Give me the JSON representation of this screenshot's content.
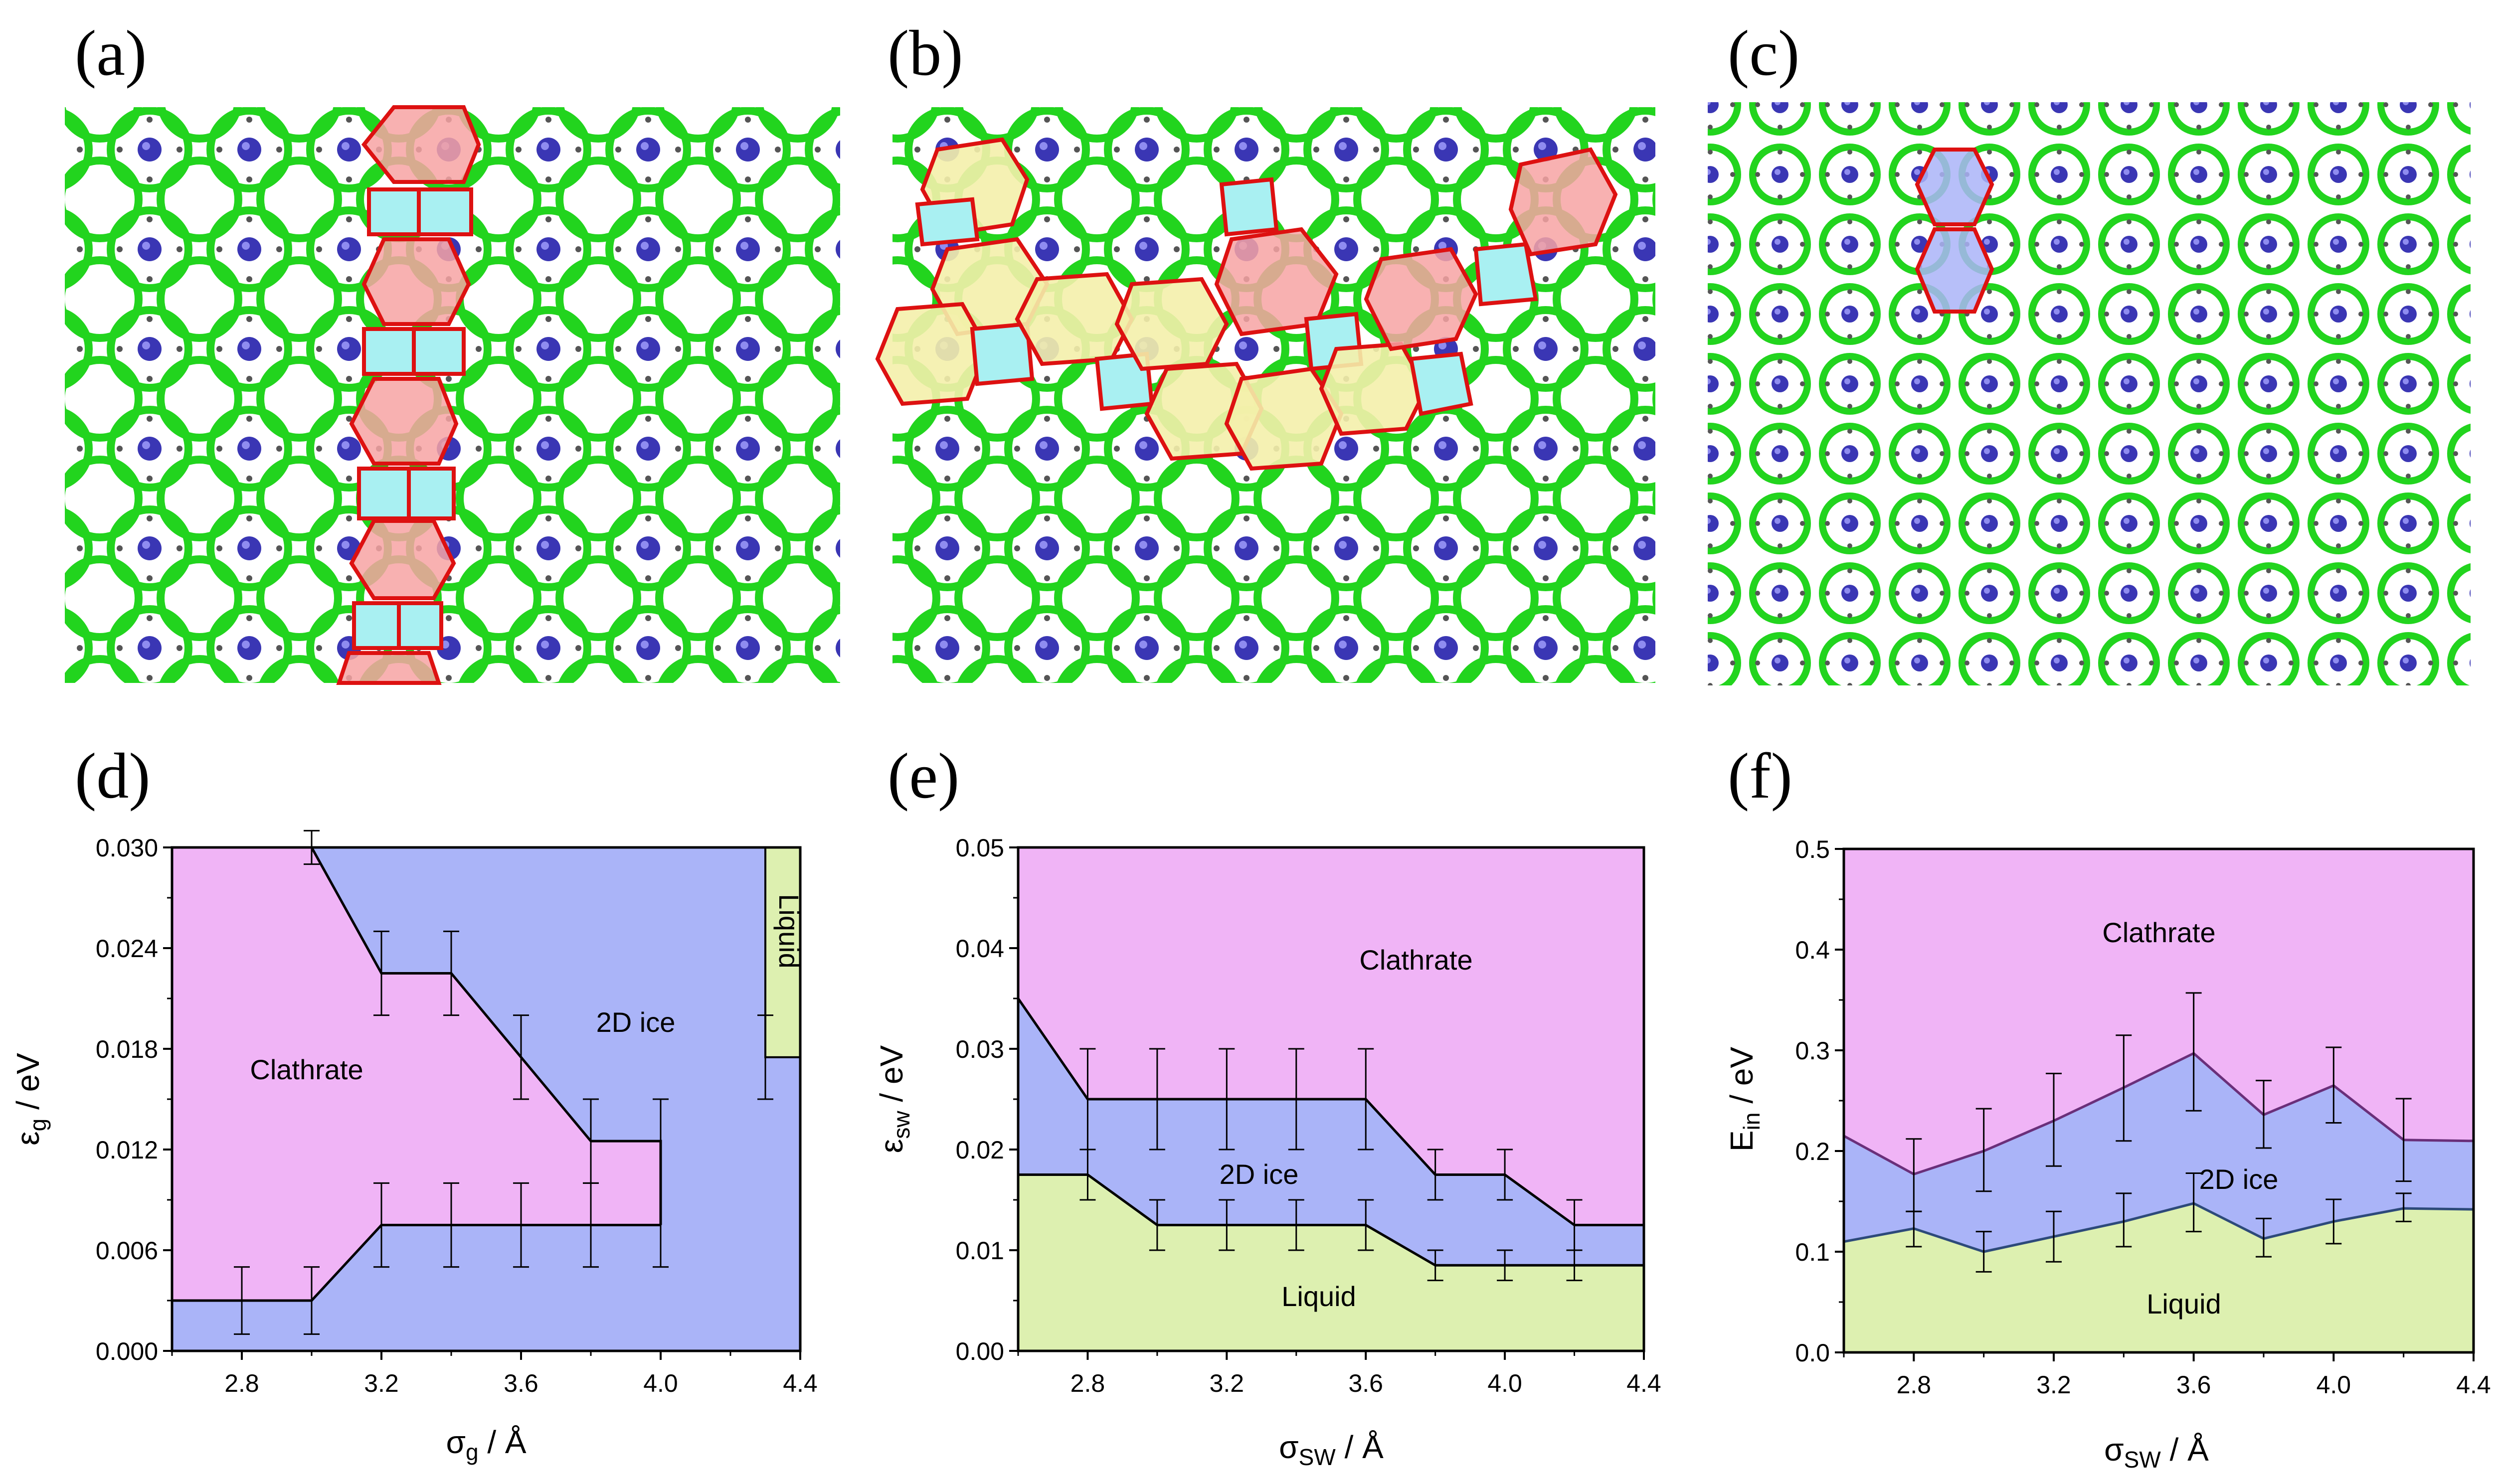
{
  "panel_labels": [
    "(a)",
    "(b)",
    "(c)",
    "(d)",
    "(e)",
    "(f)"
  ],
  "colors": {
    "clathrate": "#f0b4f6",
    "ice2d": "#aab4f8",
    "liquid": "#ddf0b0",
    "lattice_green": "#22d41e",
    "guest_blue": "#3a36b4",
    "cage_red": "#dd1111",
    "cage_red_fill": "#f7a3a3",
    "cage_cyan_fill": "#a9f0f2",
    "cage_yellow_fill": "#f4efab"
  },
  "images": [
    {
      "name": "structure-a-image",
      "description_icon": "clathrate-lattice-with-defect-column"
    },
    {
      "name": "structure-b-image",
      "description_icon": "clathrate-lattice-with-defect-band"
    },
    {
      "name": "structure-c-image",
      "description_icon": "2d-ice-lattice"
    }
  ],
  "chart_data": [
    {
      "panel": "(d)",
      "type": "area",
      "xlabel": "σ_g / Å",
      "xlabel_main": "σ",
      "xlabel_sub": "g",
      "xlabel_unit": " / Å",
      "ylabel_main": "ε",
      "ylabel_sub": "g",
      "ylabel_unit": " / eV",
      "xlim": [
        2.6,
        4.4
      ],
      "ylim": [
        0.0,
        0.03
      ],
      "xticks": [
        "2.8",
        "3.2",
        "3.6",
        "4.0",
        "4.4"
      ],
      "xtick_values": [
        2.8,
        3.2,
        3.6,
        4.0,
        4.4
      ],
      "yticks": [
        "0.000",
        "0.006",
        "0.012",
        "0.018",
        "0.024",
        "0.030"
      ],
      "ytick_values": [
        0.0,
        0.006,
        0.012,
        0.018,
        0.024,
        0.03
      ],
      "regions": [
        "Clathrate",
        "2D ice",
        "Liquid"
      ],
      "region_text": {
        "clathrate": "Clathrate",
        "ice": "2D ice",
        "liquid": "Liquid"
      },
      "lower_boundary": {
        "x": [
          2.6,
          3.0,
          3.2,
          4.0
        ],
        "y": [
          0.003,
          0.003,
          0.0075,
          0.0075
        ]
      },
      "upper_boundary": {
        "x": [
          3.0,
          3.2,
          3.4,
          3.8,
          4.0
        ],
        "y": [
          0.03,
          0.0225,
          0.0225,
          0.0125,
          0.0125
        ]
      },
      "liquid_region": {
        "x": [
          4.3,
          4.4
        ],
        "y": [
          0.0175,
          0.03
        ]
      },
      "error_bars": [
        {
          "x": 2.8,
          "y": 0.003,
          "low": 0.001,
          "high": 0.005
        },
        {
          "x": 3.0,
          "y": 0.003,
          "low": 0.001,
          "high": 0.005
        },
        {
          "x": 3.2,
          "y": 0.0075,
          "low": 0.005,
          "high": 0.01
        },
        {
          "x": 3.4,
          "y": 0.0075,
          "low": 0.005,
          "high": 0.01
        },
        {
          "x": 3.6,
          "y": 0.0075,
          "low": 0.005,
          "high": 0.01
        },
        {
          "x": 3.8,
          "y": 0.0075,
          "low": 0.005,
          "high": 0.01
        },
        {
          "x": 4.0,
          "y": 0.0075,
          "low": 0.005,
          "high": 0.015
        },
        {
          "x": 3.0,
          "y": 0.03,
          "low": 0.029,
          "high": 0.031
        },
        {
          "x": 3.2,
          "y": 0.0225,
          "low": 0.02,
          "high": 0.025
        },
        {
          "x": 3.4,
          "y": 0.0225,
          "low": 0.02,
          "high": 0.025
        },
        {
          "x": 3.6,
          "y": 0.0175,
          "low": 0.015,
          "high": 0.02
        },
        {
          "x": 3.8,
          "y": 0.0125,
          "low": 0.01,
          "high": 0.015
        },
        {
          "x": 4.3,
          "y": 0.0175,
          "low": 0.015,
          "high": 0.02
        }
      ]
    },
    {
      "panel": "(e)",
      "type": "area",
      "xlabel_main": "σ",
      "xlabel_sub": "SW",
      "xlabel_unit": " / Å",
      "ylabel_main": "ε",
      "ylabel_sub": "sw",
      "ylabel_unit": " / eV",
      "xlim": [
        2.6,
        4.4
      ],
      "ylim": [
        0.0,
        0.05
      ],
      "xticks": [
        "2.8",
        "3.2",
        "3.6",
        "4.0",
        "4.4"
      ],
      "xtick_values": [
        2.8,
        3.2,
        3.6,
        4.0,
        4.4
      ],
      "yticks": [
        "0.00",
        "0.01",
        "0.02",
        "0.03",
        "0.04",
        "0.05"
      ],
      "ytick_values": [
        0.0,
        0.01,
        0.02,
        0.03,
        0.04,
        0.05
      ],
      "regions": [
        "Clathrate",
        "2D ice",
        "Liquid"
      ],
      "region_text": {
        "clathrate": "Clathrate",
        "ice": "2D ice",
        "liquid": "Liquid"
      },
      "lower_boundary": {
        "x": [
          2.6,
          2.8,
          3.0,
          3.6,
          3.8,
          4.2,
          4.4
        ],
        "y": [
          0.0175,
          0.0175,
          0.0125,
          0.0125,
          0.0085,
          0.0085,
          0.0085
        ]
      },
      "upper_boundary": {
        "x": [
          2.6,
          2.8,
          3.6,
          3.8,
          4.0,
          4.2,
          4.4
        ],
        "y": [
          0.035,
          0.025,
          0.025,
          0.0175,
          0.0175,
          0.0125,
          0.0125
        ]
      },
      "error_bars": [
        {
          "x": 2.8,
          "y": 0.0175,
          "low": 0.015,
          "high": 0.02
        },
        {
          "x": 3.0,
          "y": 0.0125,
          "low": 0.01,
          "high": 0.015
        },
        {
          "x": 3.2,
          "y": 0.0125,
          "low": 0.01,
          "high": 0.015
        },
        {
          "x": 3.4,
          "y": 0.0125,
          "low": 0.01,
          "high": 0.015
        },
        {
          "x": 3.6,
          "y": 0.0125,
          "low": 0.01,
          "high": 0.015
        },
        {
          "x": 3.8,
          "y": 0.0085,
          "low": 0.007,
          "high": 0.01
        },
        {
          "x": 4.0,
          "y": 0.0085,
          "low": 0.007,
          "high": 0.01
        },
        {
          "x": 4.2,
          "y": 0.0085,
          "low": 0.007,
          "high": 0.01
        },
        {
          "x": 2.8,
          "y": 0.025,
          "low": 0.02,
          "high": 0.03
        },
        {
          "x": 3.0,
          "y": 0.025,
          "low": 0.02,
          "high": 0.03
        },
        {
          "x": 3.2,
          "y": 0.025,
          "low": 0.02,
          "high": 0.03
        },
        {
          "x": 3.4,
          "y": 0.025,
          "low": 0.02,
          "high": 0.03
        },
        {
          "x": 3.6,
          "y": 0.025,
          "low": 0.02,
          "high": 0.03
        },
        {
          "x": 3.8,
          "y": 0.0175,
          "low": 0.015,
          "high": 0.02
        },
        {
          "x": 4.0,
          "y": 0.0175,
          "low": 0.015,
          "high": 0.02
        },
        {
          "x": 4.2,
          "y": 0.0125,
          "low": 0.01,
          "high": 0.015
        }
      ]
    },
    {
      "panel": "(f)",
      "type": "area",
      "xlabel_main": "σ",
      "xlabel_sub": "SW",
      "xlabel_unit": " / Å",
      "ylabel_main": "E",
      "ylabel_sub": "in",
      "ylabel_unit": " / eV",
      "xlim": [
        2.6,
        4.4
      ],
      "ylim": [
        0.0,
        0.5
      ],
      "xticks": [
        "2.8",
        "3.2",
        "3.6",
        "4.0",
        "4.4"
      ],
      "xtick_values": [
        2.8,
        3.2,
        3.6,
        4.0,
        4.4
      ],
      "yticks": [
        "0.0",
        "0.1",
        "0.2",
        "0.3",
        "0.4",
        "0.5"
      ],
      "ytick_values": [
        0.0,
        0.1,
        0.2,
        0.3,
        0.4,
        0.5
      ],
      "regions": [
        "Clathrate",
        "2D ice",
        "Liquid"
      ],
      "region_text": {
        "clathrate": "Clathrate",
        "ice": "2D ice",
        "liquid": "Liquid"
      },
      "lower_boundary": {
        "x": [
          2.6,
          2.8,
          3.0,
          3.2,
          3.4,
          3.6,
          3.8,
          4.0,
          4.2,
          4.4
        ],
        "y": [
          0.11,
          0.123,
          0.1,
          0.115,
          0.13,
          0.148,
          0.113,
          0.13,
          0.143,
          0.142
        ]
      },
      "upper_boundary": {
        "x": [
          2.6,
          2.8,
          3.0,
          3.2,
          3.4,
          3.6,
          3.8,
          4.0,
          4.2,
          4.4
        ],
        "y": [
          0.215,
          0.177,
          0.2,
          0.23,
          0.263,
          0.297,
          0.236,
          0.265,
          0.211,
          0.21
        ]
      },
      "error_bars": [
        {
          "x": 2.8,
          "y": 0.123,
          "low": 0.105,
          "high": 0.14
        },
        {
          "x": 3.0,
          "y": 0.1,
          "low": 0.08,
          "high": 0.12
        },
        {
          "x": 3.2,
          "y": 0.115,
          "low": 0.09,
          "high": 0.14
        },
        {
          "x": 3.4,
          "y": 0.13,
          "low": 0.105,
          "high": 0.158
        },
        {
          "x": 3.6,
          "y": 0.148,
          "low": 0.12,
          "high": 0.178
        },
        {
          "x": 3.8,
          "y": 0.113,
          "low": 0.095,
          "high": 0.133
        },
        {
          "x": 4.0,
          "y": 0.13,
          "low": 0.108,
          "high": 0.152
        },
        {
          "x": 4.2,
          "y": 0.143,
          "low": 0.13,
          "high": 0.158
        },
        {
          "x": 2.8,
          "y": 0.177,
          "low": 0.14,
          "high": 0.212
        },
        {
          "x": 3.0,
          "y": 0.2,
          "low": 0.16,
          "high": 0.242
        },
        {
          "x": 3.2,
          "y": 0.23,
          "low": 0.185,
          "high": 0.277
        },
        {
          "x": 3.4,
          "y": 0.263,
          "low": 0.21,
          "high": 0.315
        },
        {
          "x": 3.6,
          "y": 0.297,
          "low": 0.24,
          "high": 0.357
        },
        {
          "x": 3.8,
          "y": 0.236,
          "low": 0.203,
          "high": 0.27
        },
        {
          "x": 4.0,
          "y": 0.265,
          "low": 0.228,
          "high": 0.303
        },
        {
          "x": 4.2,
          "y": 0.211,
          "low": 0.17,
          "high": 0.252
        }
      ]
    }
  ]
}
